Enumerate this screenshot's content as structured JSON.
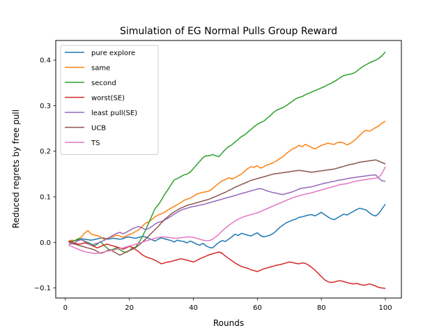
{
  "chart_data": {
    "type": "line",
    "title": "Simulation of EG Normal Pulls Group Reward",
    "xlabel": "Rounds",
    "ylabel": "Reduced regrets by free pull",
    "xlim": [
      -3,
      105
    ],
    "ylim": [
      -0.122,
      0.443
    ],
    "xticks": [
      "0",
      "20",
      "40",
      "60",
      "80",
      "100"
    ],
    "yticks": [
      "−0.1",
      "0.0",
      "0.1",
      "0.2",
      "0.3",
      "0.4"
    ],
    "grid": false,
    "legend_position": "upper left",
    "x_start": 1,
    "series": [
      {
        "name": "pure explore",
        "color": "#1f77b4",
        "values": [
          0.002,
          0.003,
          0.004,
          0.006,
          0.008,
          0.007,
          0.006,
          0.005,
          0.006,
          0.008,
          0.009,
          0.01,
          0.007,
          0.008,
          0.009,
          0.008,
          0.007,
          0.008,
          0.011,
          0.012,
          0.01,
          0.009,
          0.011,
          0.013,
          0.012,
          0.009,
          0.006,
          0.003,
          0.007,
          0.01,
          0.008,
          0.006,
          0.004,
          0.001,
          0.005,
          0.003,
          0.002,
          -0.001,
          0.003,
          0.0,
          -0.004,
          -0.006,
          -0.002,
          -0.008,
          -0.011,
          -0.012,
          -0.006,
          0.0,
          0.004,
          0.002,
          0.007,
          0.012,
          0.018,
          0.015,
          0.02,
          0.018,
          0.016,
          0.014,
          0.018,
          0.021,
          0.015,
          0.012,
          0.014,
          0.016,
          0.02,
          0.026,
          0.033,
          0.038,
          0.043,
          0.046,
          0.049,
          0.051,
          0.055,
          0.056,
          0.058,
          0.06,
          0.061,
          0.058,
          0.062,
          0.066,
          0.061,
          0.056,
          0.052,
          0.05,
          0.054,
          0.058,
          0.062,
          0.06,
          0.064,
          0.068,
          0.072,
          0.075,
          0.073,
          0.071,
          0.065,
          0.06,
          0.058,
          0.064,
          0.074,
          0.084
        ]
      },
      {
        "name": "same",
        "color": "#ff7f0e",
        "values": [
          0.002,
          0.005,
          0.004,
          0.008,
          0.012,
          0.02,
          0.026,
          0.019,
          0.016,
          0.015,
          0.012,
          0.007,
          0.009,
          0.011,
          0.013,
          0.016,
          0.014,
          0.011,
          0.014,
          0.017,
          0.02,
          0.024,
          0.028,
          0.035,
          0.042,
          0.045,
          0.05,
          0.056,
          0.06,
          0.063,
          0.066,
          0.071,
          0.075,
          0.079,
          0.083,
          0.087,
          0.092,
          0.095,
          0.097,
          0.101,
          0.106,
          0.108,
          0.11,
          0.111,
          0.113,
          0.118,
          0.124,
          0.13,
          0.135,
          0.138,
          0.142,
          0.139,
          0.142,
          0.146,
          0.15,
          0.156,
          0.162,
          0.166,
          0.165,
          0.168,
          0.163,
          0.166,
          0.17,
          0.172,
          0.175,
          0.179,
          0.184,
          0.188,
          0.195,
          0.2,
          0.205,
          0.208,
          0.213,
          0.21,
          0.215,
          0.212,
          0.208,
          0.205,
          0.209,
          0.213,
          0.215,
          0.218,
          0.216,
          0.215,
          0.219,
          0.22,
          0.218,
          0.214,
          0.217,
          0.222,
          0.228,
          0.235,
          0.242,
          0.246,
          0.244,
          0.248,
          0.252,
          0.256,
          0.262,
          0.266
        ]
      },
      {
        "name": "second",
        "color": "#2ca02c",
        "values": [
          0.003,
          0.002,
          0.004,
          0.008,
          0.006,
          0.003,
          0.0,
          -0.003,
          -0.008,
          -0.004,
          0.002,
          -0.006,
          -0.012,
          -0.018,
          -0.015,
          -0.012,
          -0.016,
          -0.02,
          -0.022,
          -0.018,
          -0.012,
          -0.01,
          0.0,
          0.012,
          0.026,
          0.042,
          0.058,
          0.074,
          0.082,
          0.093,
          0.105,
          0.115,
          0.126,
          0.137,
          0.14,
          0.144,
          0.148,
          0.15,
          0.154,
          0.162,
          0.17,
          0.178,
          0.186,
          0.19,
          0.19,
          0.193,
          0.19,
          0.188,
          0.196,
          0.204,
          0.21,
          0.214,
          0.22,
          0.226,
          0.232,
          0.236,
          0.242,
          0.248,
          0.254,
          0.259,
          0.263,
          0.266,
          0.272,
          0.278,
          0.285,
          0.29,
          0.293,
          0.296,
          0.3,
          0.305,
          0.31,
          0.315,
          0.318,
          0.32,
          0.324,
          0.327,
          0.33,
          0.333,
          0.336,
          0.339,
          0.342,
          0.346,
          0.349,
          0.353,
          0.357,
          0.362,
          0.366,
          0.368,
          0.369,
          0.371,
          0.375,
          0.381,
          0.386,
          0.39,
          0.394,
          0.397,
          0.4,
          0.404,
          0.41,
          0.418
        ]
      },
      {
        "name": "worst(SE)",
        "color": "#d62728",
        "values": [
          0.003,
          0.001,
          -0.002,
          -0.004,
          -0.003,
          -0.001,
          -0.003,
          -0.006,
          -0.009,
          -0.012,
          -0.009,
          -0.006,
          -0.004,
          -0.006,
          -0.008,
          -0.01,
          -0.012,
          -0.015,
          -0.012,
          -0.009,
          -0.011,
          -0.016,
          -0.021,
          -0.027,
          -0.031,
          -0.034,
          -0.036,
          -0.039,
          -0.043,
          -0.047,
          -0.045,
          -0.043,
          -0.042,
          -0.04,
          -0.038,
          -0.036,
          -0.037,
          -0.039,
          -0.041,
          -0.043,
          -0.04,
          -0.036,
          -0.033,
          -0.03,
          -0.027,
          -0.025,
          -0.023,
          -0.021,
          -0.024,
          -0.03,
          -0.035,
          -0.04,
          -0.045,
          -0.049,
          -0.053,
          -0.055,
          -0.057,
          -0.06,
          -0.062,
          -0.064,
          -0.061,
          -0.058,
          -0.056,
          -0.054,
          -0.052,
          -0.05,
          -0.049,
          -0.047,
          -0.045,
          -0.043,
          -0.044,
          -0.046,
          -0.047,
          -0.045,
          -0.046,
          -0.05,
          -0.055,
          -0.061,
          -0.068,
          -0.075,
          -0.082,
          -0.086,
          -0.088,
          -0.087,
          -0.085,
          -0.084,
          -0.086,
          -0.088,
          -0.09,
          -0.091,
          -0.09,
          -0.092,
          -0.094,
          -0.093,
          -0.091,
          -0.093,
          -0.096,
          -0.099,
          -0.1,
          -0.101
        ]
      },
      {
        "name": "least pull(SE)",
        "color": "#9467bd",
        "values": [
          -0.004,
          -0.003,
          0.0,
          0.004,
          0.006,
          0.002,
          -0.002,
          -0.006,
          -0.004,
          -0.002,
          0.001,
          0.004,
          0.008,
          0.012,
          0.016,
          0.02,
          0.022,
          0.019,
          0.022,
          0.026,
          0.03,
          0.033,
          0.035,
          0.032,
          0.028,
          0.03,
          0.035,
          0.04,
          0.044,
          0.046,
          0.049,
          0.053,
          0.057,
          0.062,
          0.066,
          0.07,
          0.073,
          0.075,
          0.077,
          0.079,
          0.08,
          0.082,
          0.083,
          0.085,
          0.087,
          0.089,
          0.091,
          0.093,
          0.095,
          0.097,
          0.099,
          0.101,
          0.103,
          0.105,
          0.107,
          0.109,
          0.111,
          0.113,
          0.115,
          0.117,
          0.118,
          0.116,
          0.113,
          0.111,
          0.109,
          0.108,
          0.106,
          0.105,
          0.107,
          0.109,
          0.111,
          0.114,
          0.117,
          0.119,
          0.12,
          0.121,
          0.122,
          0.124,
          0.126,
          0.128,
          0.13,
          0.131,
          0.133,
          0.134,
          0.136,
          0.137,
          0.138,
          0.14,
          0.141,
          0.142,
          0.143,
          0.144,
          0.145,
          0.146,
          0.147,
          0.148,
          0.148,
          0.14,
          0.135,
          0.134
        ]
      },
      {
        "name": "UCB",
        "color": "#8c564b",
        "values": [
          0.001,
          -0.002,
          -0.004,
          -0.006,
          -0.008,
          -0.01,
          -0.012,
          -0.014,
          -0.016,
          -0.02,
          -0.024,
          -0.022,
          -0.018,
          -0.016,
          -0.02,
          -0.024,
          -0.028,
          -0.025,
          -0.021,
          -0.018,
          -0.015,
          -0.011,
          -0.006,
          0.0,
          0.007,
          0.014,
          0.021,
          0.028,
          0.035,
          0.043,
          0.05,
          0.056,
          0.062,
          0.067,
          0.071,
          0.075,
          0.078,
          0.081,
          0.083,
          0.085,
          0.087,
          0.089,
          0.091,
          0.093,
          0.095,
          0.098,
          0.101,
          0.104,
          0.107,
          0.11,
          0.114,
          0.117,
          0.121,
          0.124,
          0.127,
          0.13,
          0.133,
          0.136,
          0.138,
          0.14,
          0.142,
          0.144,
          0.146,
          0.148,
          0.15,
          0.151,
          0.152,
          0.153,
          0.154,
          0.155,
          0.156,
          0.157,
          0.158,
          0.157,
          0.156,
          0.155,
          0.154,
          0.155,
          0.156,
          0.157,
          0.158,
          0.159,
          0.16,
          0.161,
          0.163,
          0.165,
          0.167,
          0.169,
          0.171,
          0.172,
          0.174,
          0.176,
          0.177,
          0.178,
          0.179,
          0.18,
          0.181,
          0.178,
          0.175,
          0.172
        ]
      },
      {
        "name": "TS",
        "color": "#e377c2",
        "values": [
          -0.006,
          -0.009,
          -0.012,
          -0.015,
          -0.018,
          -0.02,
          -0.022,
          -0.023,
          -0.024,
          -0.024,
          -0.023,
          -0.021,
          -0.019,
          -0.018,
          -0.017,
          -0.015,
          -0.013,
          -0.012,
          -0.01,
          -0.008,
          -0.006,
          -0.004,
          -0.002,
          0.0,
          0.003,
          0.005,
          0.007,
          0.009,
          0.011,
          0.012,
          0.012,
          0.011,
          0.01,
          0.009,
          0.009,
          0.01,
          0.011,
          0.012,
          0.012,
          0.011,
          0.009,
          0.007,
          0.005,
          0.004,
          0.004,
          0.007,
          0.012,
          0.018,
          0.025,
          0.031,
          0.037,
          0.042,
          0.047,
          0.051,
          0.054,
          0.057,
          0.059,
          0.061,
          0.063,
          0.065,
          0.068,
          0.071,
          0.074,
          0.077,
          0.08,
          0.083,
          0.086,
          0.089,
          0.092,
          0.095,
          0.098,
          0.1,
          0.102,
          0.104,
          0.106,
          0.107,
          0.109,
          0.111,
          0.113,
          0.115,
          0.117,
          0.119,
          0.121,
          0.123,
          0.125,
          0.127,
          0.128,
          0.129,
          0.131,
          0.133,
          0.135,
          0.136,
          0.137,
          0.138,
          0.139,
          0.14,
          0.141,
          0.143,
          0.152,
          0.166
        ]
      }
    ]
  }
}
